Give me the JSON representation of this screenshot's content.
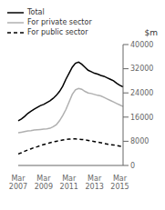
{
  "chart_data": {
    "type": "line",
    "ylabel": "$m",
    "categories": [
      "Mar\n2007",
      null,
      null,
      null,
      null,
      null,
      null,
      null,
      "Mar\n2009",
      null,
      null,
      null,
      null,
      null,
      null,
      null,
      "Mar\n2011",
      null,
      null,
      null,
      null,
      null,
      null,
      null,
      "Mar\n2013",
      null,
      null,
      null,
      null,
      null,
      null,
      null,
      "Mar\n2015",
      null
    ],
    "series": [
      {
        "name": "Total",
        "color": "#000000",
        "line_style": "solid",
        "values": [
          14800,
          15400,
          16200,
          17200,
          17900,
          18600,
          19200,
          19800,
          20200,
          20800,
          21400,
          22200,
          23200,
          24500,
          26200,
          28500,
          30500,
          32500,
          33800,
          34200,
          33500,
          32500,
          31500,
          31000,
          30500,
          30200,
          29800,
          29500,
          29000,
          28500,
          28000,
          27200,
          26500,
          26000
        ]
      },
      {
        "name": "For private sector",
        "color": "#b0b0b0",
        "line_style": "solid",
        "values": [
          10800,
          11000,
          11200,
          11400,
          11500,
          11700,
          11800,
          11900,
          12000,
          12100,
          12300,
          12800,
          13500,
          14800,
          16500,
          18500,
          21000,
          23500,
          25000,
          25500,
          25200,
          24500,
          24000,
          23800,
          23500,
          23200,
          23000,
          22500,
          22000,
          21500,
          21000,
          20500,
          20000,
          19500
        ]
      },
      {
        "name": "For public sector",
        "color": "#000000",
        "line_style": "dashed",
        "values": [
          3800,
          4200,
          4700,
          5100,
          5500,
          5900,
          6200,
          6600,
          6900,
          7200,
          7500,
          7800,
          8000,
          8200,
          8400,
          8600,
          8700,
          8800,
          8800,
          8700,
          8600,
          8500,
          8300,
          8100,
          7900,
          7700,
          7500,
          7300,
          7100,
          6900,
          6800,
          6600,
          6400,
          6200
        ]
      }
    ],
    "ylim": [
      0,
      40000
    ],
    "yticks": [
      0,
      8000,
      16000,
      24000,
      32000,
      40000
    ],
    "legend": "upper left",
    "grid": false
  }
}
